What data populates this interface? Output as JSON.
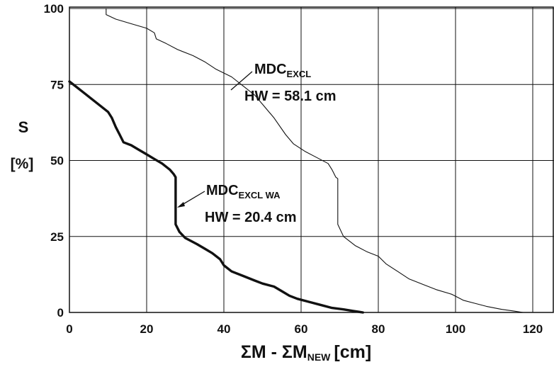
{
  "chart_data": {
    "type": "line",
    "title": "",
    "xlabel": {
      "main": "ΣM - ΣM",
      "sub": "NEW",
      "unit": "[cm]"
    },
    "ylabel": {
      "line1": "S",
      "line2": "[%]"
    },
    "xlim": [
      0,
      120
    ],
    "ylim": [
      0,
      100
    ],
    "xticks": [
      "0",
      "20",
      "40",
      "60",
      "80",
      "100",
      "120"
    ],
    "yticks": [
      "0",
      "25",
      "50",
      "75",
      "100"
    ],
    "grid": true,
    "legend": "none",
    "series": [
      {
        "name": "MDC_EXCL",
        "annotation": {
          "base": "MDC",
          "sub": "EXCL",
          "hw": "HW = 58.1 cm"
        },
        "weight": "thin",
        "x": [
          9.5,
          9.5,
          12,
          16,
          20,
          22,
          22.5,
          25,
          28,
          32,
          35,
          38,
          42,
          45,
          48,
          50,
          53,
          56,
          58,
          61,
          64,
          67,
          68,
          69,
          69.5,
          69.5,
          71,
          74,
          77,
          80,
          82,
          85,
          88,
          92,
          95,
          99,
          102,
          105,
          108,
          112,
          115,
          117.5
        ],
        "y": [
          100,
          98,
          96.5,
          95,
          93.5,
          92,
          90,
          88.5,
          86.5,
          84.5,
          82.5,
          80,
          77.5,
          74.5,
          71.5,
          68.5,
          64,
          58.5,
          55.5,
          53,
          51,
          49,
          47,
          44.5,
          44,
          29,
          25,
          22,
          20,
          18.5,
          16,
          13.5,
          11,
          9,
          7.5,
          6,
          4,
          3,
          2,
          1,
          0.5,
          0
        ]
      },
      {
        "name": "MDC_EXCL WA",
        "annotation": {
          "base": "MDC",
          "sub": "EXCL WA",
          "hw": "HW = 20.4 cm"
        },
        "weight": "thick",
        "x": [
          0,
          2,
          4,
          6,
          8,
          10,
          11,
          12,
          13,
          14,
          16,
          18,
          20,
          22,
          24,
          26,
          27,
          27.5,
          27.5,
          28.5,
          30,
          33,
          35,
          37,
          39,
          40,
          42,
          45,
          48,
          50,
          53,
          55,
          57,
          59,
          62,
          65,
          68,
          71,
          73.5,
          76
        ],
        "y": [
          76,
          74,
          72,
          70,
          68,
          66,
          64,
          61,
          58.5,
          56,
          55,
          53.5,
          52,
          50.5,
          49,
          47,
          45.5,
          44.5,
          29,
          26.5,
          24.5,
          22.5,
          21,
          19.5,
          17.5,
          15.5,
          13.5,
          12,
          10.5,
          9.5,
          8.5,
          7,
          5.5,
          4.5,
          3.5,
          2.5,
          1.5,
          1,
          0.5,
          0
        ]
      }
    ]
  }
}
